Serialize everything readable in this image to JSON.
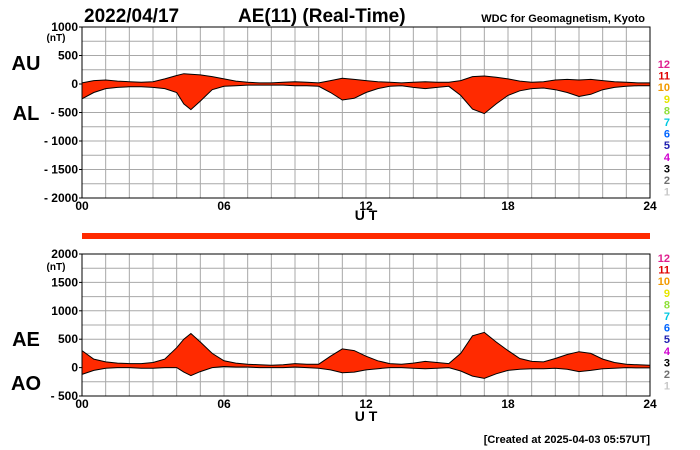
{
  "header": {
    "date": "2022/04/17",
    "title": "AE(11) (Real-Time)",
    "source": "WDC for Geomagnetism, Kyoto",
    "created": "[Created at 2025-04-03 05:57UT]"
  },
  "legend": {
    "items": [
      {
        "label": "12",
        "color": "#e0208f"
      },
      {
        "label": "11",
        "color": "#e00000"
      },
      {
        "label": "10",
        "color": "#f29a00"
      },
      {
        "label": "9",
        "color": "#e6e600"
      },
      {
        "label": "8",
        "color": "#8fe03a"
      },
      {
        "label": "7",
        "color": "#00c8e0"
      },
      {
        "label": "6",
        "color": "#0064ff"
      },
      {
        "label": "5",
        "color": "#2020b0"
      },
      {
        "label": "4",
        "color": "#d000d0"
      },
      {
        "label": "3",
        "color": "#000000"
      },
      {
        "label": "2",
        "color": "#707070"
      },
      {
        "label": "1",
        "color": "#c8c8c8"
      }
    ]
  },
  "chart_data": [
    {
      "type": "area",
      "upper_series_label": "AU",
      "lower_series_label": "AL",
      "unit": "(nT)",
      "xlabel": "U T",
      "xlim": [
        0,
        24
      ],
      "xticks": [
        "00",
        "06",
        "12",
        "18",
        "24"
      ],
      "ylim": [
        -2000,
        1000
      ],
      "yticks": [
        "1000",
        "500",
        "0",
        "- 500",
        "- 1000",
        "- 1500",
        "- 2000"
      ],
      "fill_color": "#ff2a00",
      "grid": true,
      "upper": {
        "x": [
          0,
          0.5,
          1,
          1.5,
          2,
          2.5,
          3,
          3.5,
          4,
          4.3,
          4.6,
          5,
          5.5,
          6,
          6.5,
          7,
          7.5,
          8,
          8.5,
          9,
          9.5,
          10,
          10.5,
          11,
          11.5,
          12,
          12.5,
          13,
          13.5,
          14,
          14.5,
          15,
          15.5,
          16,
          16.5,
          17,
          17.5,
          18,
          18.5,
          19,
          19.5,
          20,
          20.5,
          21,
          21.5,
          22,
          22.5,
          23,
          23.5,
          24
        ],
        "y": [
          20,
          60,
          70,
          50,
          40,
          30,
          40,
          90,
          150,
          180,
          170,
          160,
          130,
          90,
          50,
          30,
          20,
          20,
          30,
          40,
          30,
          20,
          60,
          100,
          80,
          60,
          40,
          30,
          20,
          30,
          40,
          30,
          30,
          60,
          130,
          140,
          120,
          90,
          50,
          30,
          40,
          70,
          80,
          70,
          80,
          60,
          40,
          30,
          20,
          20
        ]
      },
      "lower": {
        "x": [
          0,
          0.5,
          1,
          1.5,
          2,
          2.5,
          3,
          3.5,
          4,
          4.3,
          4.6,
          5,
          5.5,
          6,
          6.5,
          7,
          7.5,
          8,
          8.5,
          9,
          9.5,
          10,
          10.5,
          11,
          11.5,
          12,
          12.5,
          13,
          13.5,
          14,
          14.5,
          15,
          15.5,
          16,
          16.5,
          17,
          17.5,
          18,
          18.5,
          19,
          19.5,
          20,
          20.5,
          21,
          21.5,
          22,
          22.5,
          23,
          23.5,
          24
        ],
        "y": [
          -260,
          -150,
          -80,
          -60,
          -50,
          -50,
          -60,
          -80,
          -150,
          -350,
          -450,
          -300,
          -100,
          -40,
          -30,
          -20,
          -20,
          -20,
          -20,
          -30,
          -30,
          -40,
          -150,
          -280,
          -250,
          -150,
          -80,
          -40,
          -30,
          -60,
          -80,
          -60,
          -40,
          -200,
          -440,
          -520,
          -350,
          -200,
          -120,
          -80,
          -70,
          -100,
          -150,
          -220,
          -180,
          -100,
          -60,
          -40,
          -30,
          -30
        ]
      }
    },
    {
      "type": "area",
      "upper_series_label": "AE",
      "lower_series_label": "AO",
      "unit": "(nT)",
      "xlabel": "U T",
      "xlim": [
        0,
        24
      ],
      "xticks": [
        "00",
        "06",
        "12",
        "18",
        "24"
      ],
      "ylim": [
        -500,
        2000
      ],
      "yticks": [
        "2000",
        "1500",
        "1000",
        "500",
        "0",
        "- 500"
      ],
      "fill_color": "#ff2a00",
      "grid": true,
      "upper": {
        "x": [
          0,
          0.5,
          1,
          1.5,
          2,
          2.5,
          3,
          3.5,
          4,
          4.3,
          4.6,
          5,
          5.5,
          6,
          6.5,
          7,
          7.5,
          8,
          8.5,
          9,
          9.5,
          10,
          10.5,
          11,
          11.5,
          12,
          12.5,
          13,
          13.5,
          14,
          14.5,
          15,
          15.5,
          16,
          16.5,
          17,
          17.5,
          18,
          18.5,
          19,
          19.5,
          20,
          20.5,
          21,
          21.5,
          22,
          22.5,
          23,
          23.5,
          24
        ],
        "y": [
          300,
          150,
          100,
          80,
          70,
          70,
          90,
          150,
          350,
          500,
          600,
          450,
          250,
          120,
          80,
          60,
          50,
          40,
          50,
          70,
          60,
          60,
          200,
          330,
          300,
          200,
          120,
          70,
          60,
          80,
          110,
          90,
          70,
          250,
          560,
          620,
          450,
          300,
          160,
          110,
          100,
          160,
          230,
          280,
          250,
          150,
          90,
          60,
          50,
          40
        ]
      },
      "lower": {
        "x": [
          0,
          0.5,
          1,
          1.5,
          2,
          2.5,
          3,
          3.5,
          4,
          4.3,
          4.6,
          5,
          5.5,
          6,
          6.5,
          7,
          7.5,
          8,
          8.5,
          9,
          9.5,
          10,
          10.5,
          11,
          11.5,
          12,
          12.5,
          13,
          13.5,
          14,
          14.5,
          15,
          15.5,
          16,
          16.5,
          17,
          17.5,
          18,
          18.5,
          19,
          19.5,
          20,
          20.5,
          21,
          21.5,
          22,
          22.5,
          23,
          23.5,
          24
        ],
        "y": [
          -120,
          -50,
          -10,
          0,
          0,
          -10,
          -10,
          0,
          0,
          -80,
          -140,
          -70,
          0,
          20,
          10,
          10,
          0,
          0,
          0,
          10,
          0,
          -10,
          -40,
          -90,
          -80,
          -40,
          -20,
          0,
          0,
          -10,
          -20,
          -10,
          0,
          -60,
          -150,
          -190,
          -110,
          -50,
          -30,
          -20,
          -20,
          -10,
          -30,
          -70,
          -50,
          -20,
          -10,
          0,
          -5,
          -5
        ]
      }
    }
  ]
}
